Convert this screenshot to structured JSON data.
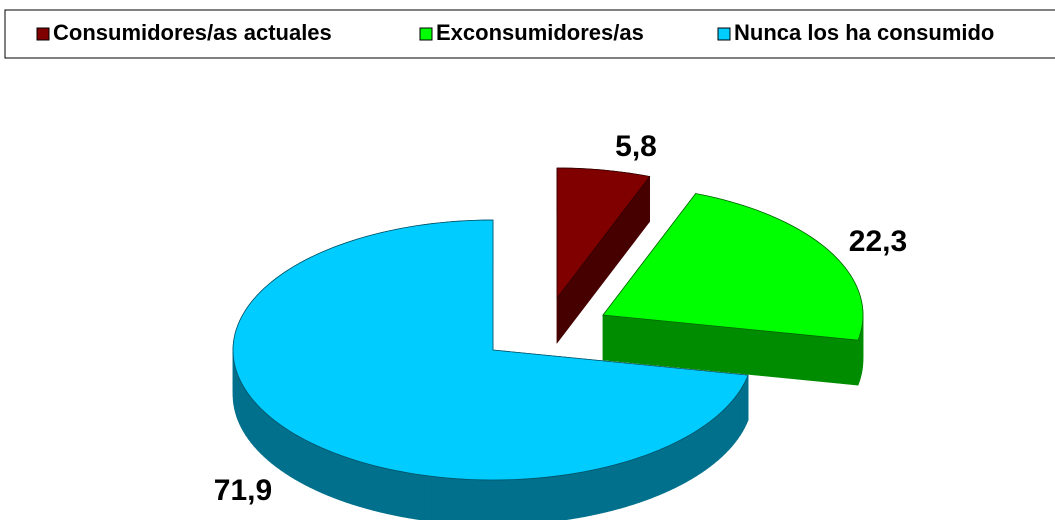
{
  "chart_data": {
    "type": "pie",
    "categories": [
      "Consumidores/as actuales",
      "Exconsumidores/as",
      "Nunca los ha consumido"
    ],
    "values": [
      5.8,
      22.3,
      71.9
    ],
    "value_labels": [
      "5,8",
      "22,3",
      "71,9"
    ],
    "colors": [
      "#800000",
      "#00ff00",
      "#00ccff"
    ],
    "legend": "top"
  }
}
